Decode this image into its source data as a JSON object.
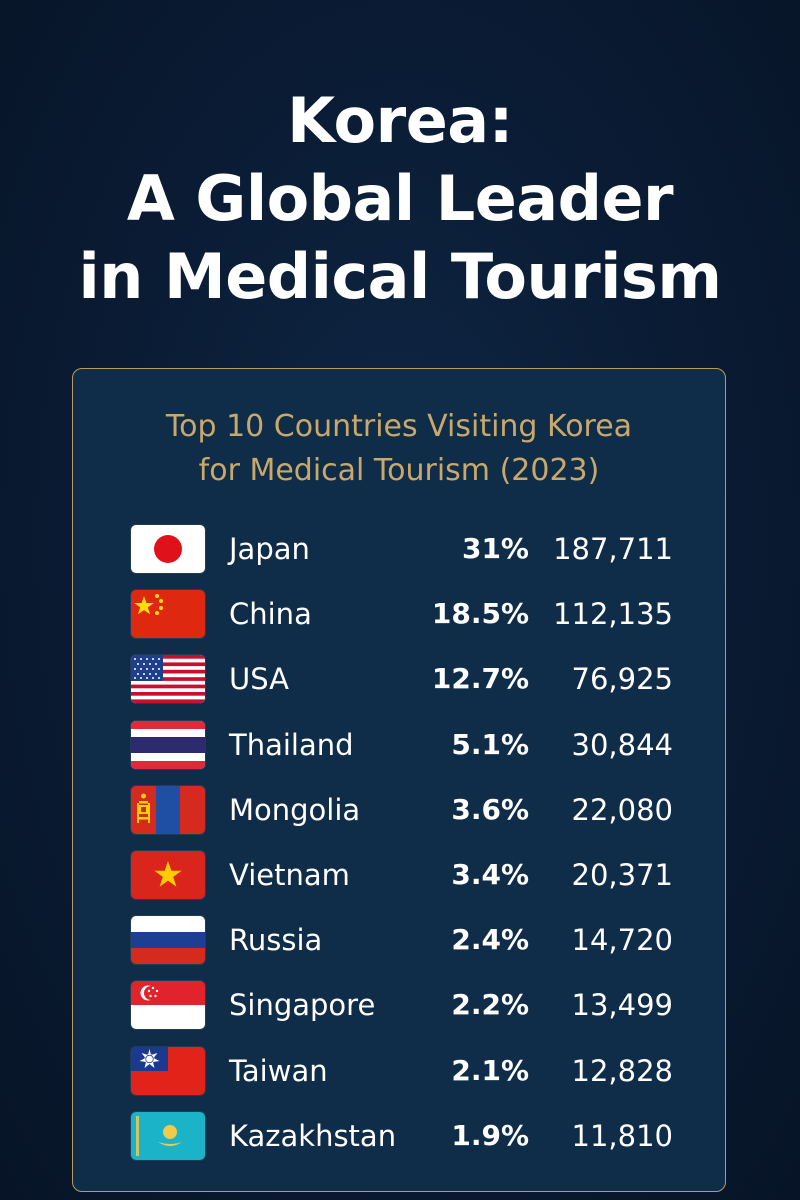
{
  "header": {
    "title_lines": [
      "Korea:",
      "A Global Leader",
      "in Medical Tourism"
    ]
  },
  "chart_data": {
    "type": "table",
    "title_lines": [
      "Top 10 Countries Visiting Korea",
      "for Medical Tourism (2023)"
    ],
    "rows": [
      {
        "country": "Japan",
        "share": "31%",
        "visitors": "187,711",
        "flag": "japan-flag-icon"
      },
      {
        "country": "China",
        "share": "18.5%",
        "visitors": "112,135",
        "flag": "china-flag-icon"
      },
      {
        "country": "USA",
        "share": "12.7%",
        "visitors": "76,925",
        "flag": "usa-flag-icon"
      },
      {
        "country": "Thailand",
        "share": "5.1%",
        "visitors": "30,844",
        "flag": "thailand-flag-icon"
      },
      {
        "country": "Mongolia",
        "share": "3.6%",
        "visitors": "22,080",
        "flag": "mongolia-flag-icon"
      },
      {
        "country": "Vietnam",
        "share": "3.4%",
        "visitors": "20,371",
        "flag": "vietnam-flag-icon"
      },
      {
        "country": "Russia",
        "share": "2.4%",
        "visitors": "14,720",
        "flag": "russia-flag-icon"
      },
      {
        "country": "Singapore",
        "share": "2.2%",
        "visitors": "13,499",
        "flag": "singapore-flag-icon"
      },
      {
        "country": "Taiwan",
        "share": "2.1%",
        "visitors": "12,828",
        "flag": "taiwan-flag-icon"
      },
      {
        "country": "Kazakhstan",
        "share": "1.9%",
        "visitors": "11,810",
        "flag": "kazakhstan-flag-icon"
      }
    ]
  },
  "colors": {
    "background": "#0a1b33",
    "card": "#0f2c49",
    "card_border": "#b89a64",
    "card_title": "#c9a96b",
    "text": "#ffffff"
  }
}
